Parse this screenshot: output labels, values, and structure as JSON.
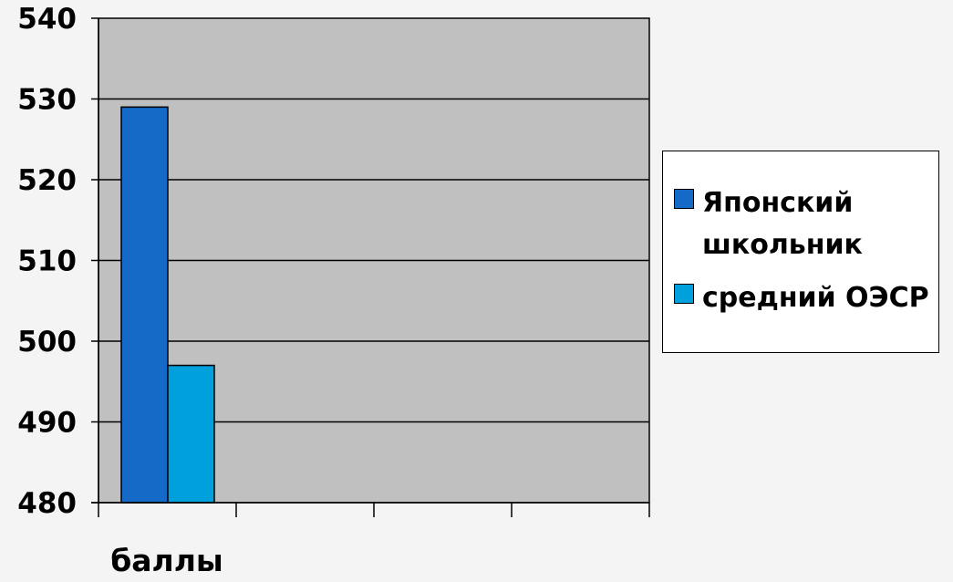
{
  "chart_data": {
    "type": "bar",
    "categories": [
      "баллы"
    ],
    "series": [
      {
        "name": "Японский школьник",
        "values": [
          529
        ],
        "color": "#1569C7"
      },
      {
        "name": "средний ОЭСР",
        "values": [
          497
        ],
        "color": "#00A0DC"
      }
    ],
    "title": "",
    "xlabel": "баллы",
    "ylabel": "",
    "ylim": [
      480,
      540
    ],
    "yticks": [
      "480",
      "490",
      "500",
      "510",
      "520",
      "530",
      "540"
    ],
    "grid": true,
    "legend_position": "right",
    "plot_background": "#c0c0c0"
  }
}
